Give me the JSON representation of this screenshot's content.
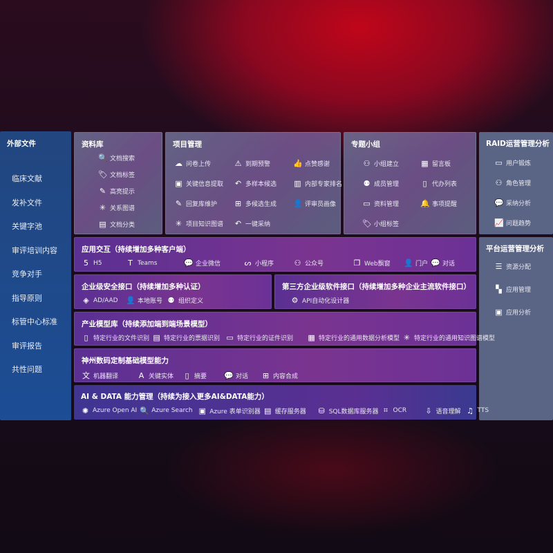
{
  "sidebar": {
    "title": "外部文件",
    "items": [
      "临床文献",
      "发补文件",
      "关键字池",
      "审评培训内容",
      "竞争对手",
      "指导原则",
      "标管中心标准",
      "审评报告",
      "共性问题"
    ]
  },
  "library": {
    "title": "资料库",
    "items": [
      {
        "icon": "document-search-icon",
        "label": "文档搜索"
      },
      {
        "icon": "tag-icon",
        "label": "文档标签"
      },
      {
        "icon": "pen-icon",
        "label": "高亮提示"
      },
      {
        "icon": "graph-icon",
        "label": "关系图谱"
      },
      {
        "icon": "classify-icon",
        "label": "文档分类"
      }
    ]
  },
  "project": {
    "title": "项目管理",
    "items": [
      {
        "icon": "cloud-upload-icon",
        "label": "问卷上传"
      },
      {
        "icon": "alarm-icon",
        "label": "到期预警"
      },
      {
        "icon": "thumbs-up-icon",
        "label": "点赞感谢"
      },
      {
        "icon": "extract-icon",
        "label": "关键信息提取"
      },
      {
        "icon": "reply-icon",
        "label": "多样本候选"
      },
      {
        "icon": "ranking-icon",
        "label": "内部专家排名"
      },
      {
        "icon": "edit-icon",
        "label": "回复库维护"
      },
      {
        "icon": "puzzle-icon",
        "label": "多候选生成"
      },
      {
        "icon": "user-icon",
        "label": "评审员画像"
      },
      {
        "icon": "knowledge-graph-icon",
        "label": "项目知识图谱"
      },
      {
        "icon": "reply-icon",
        "label": "一键采纳"
      }
    ]
  },
  "topic": {
    "title": "专题小组",
    "items": [
      {
        "icon": "group-icon",
        "label": "小组建立"
      },
      {
        "icon": "bbs-icon",
        "label": "留言板"
      },
      {
        "icon": "member-icon",
        "label": "成员管理"
      },
      {
        "icon": "clipboard-icon",
        "label": "代办列表"
      },
      {
        "icon": "folder-icon",
        "label": "资料管理"
      },
      {
        "icon": "bell-icon",
        "label": "事项提醒"
      },
      {
        "icon": "tag-icon",
        "label": "小组标签"
      }
    ]
  },
  "raid": {
    "title": "RAID运营管理分析",
    "items": [
      {
        "icon": "id-card-icon",
        "label": "用户锻炼"
      },
      {
        "icon": "users-icon",
        "label": "角色管理"
      },
      {
        "icon": "qa-icon",
        "label": "采纳分析"
      },
      {
        "icon": "trend-icon",
        "label": "问题趋势"
      }
    ]
  },
  "platform": {
    "title": "平台运营管理分析",
    "items": [
      {
        "icon": "list-check-icon",
        "label": "资源分配"
      },
      {
        "icon": "apps-icon",
        "label": "应用管理"
      },
      {
        "icon": "analysis-icon",
        "label": "应用分析"
      }
    ]
  },
  "interaction": {
    "title": "应用交互（持续增加多种客户端）",
    "items": [
      {
        "icon": "html5-icon",
        "label": "H5"
      },
      {
        "icon": "teams-icon",
        "label": "Teams"
      },
      {
        "icon": "wecom-icon",
        "label": "企业微信"
      },
      {
        "icon": "miniprogram-icon",
        "label": "小程序"
      },
      {
        "icon": "official-account-icon",
        "label": "公众号"
      },
      {
        "icon": "window-icon",
        "label": "Web飘窗"
      },
      {
        "icon": "portal-icon",
        "label": "门户"
      },
      {
        "icon": "chat-icon",
        "label": "对话"
      }
    ]
  },
  "security": {
    "title": "企业级安全接口（持续增加多种认证）",
    "items": [
      {
        "icon": "ad-icon",
        "label": "AD/AAD"
      },
      {
        "icon": "account-icon",
        "label": "本地账号"
      },
      {
        "icon": "org-icon",
        "label": "组织定义"
      }
    ]
  },
  "thirdparty": {
    "title": "第三方企业级软件接口（持续增加多种企业主流软件接口）",
    "items": [
      {
        "icon": "gear-icon",
        "label": "API自动化设计器"
      }
    ]
  },
  "industry": {
    "title": "产业模型库（持续添加端到端场景模型）",
    "items": [
      {
        "icon": "file-icon",
        "label": "特定行业的文件识别"
      },
      {
        "icon": "receipt-icon",
        "label": "特定行业的票据识别"
      },
      {
        "icon": "id-card-icon",
        "label": "特定行业的证件识别"
      },
      {
        "icon": "chart-icon",
        "label": "特定行业的通用数据分析模型"
      },
      {
        "icon": "graph-icon",
        "label": "特定行业的通用知识图谱模型"
      }
    ]
  },
  "base": {
    "title": "神州数码定制基础模型能力",
    "items": [
      {
        "icon": "translate-icon",
        "label": "机器翻译"
      },
      {
        "icon": "entity-icon",
        "label": "关键实体"
      },
      {
        "icon": "summary-icon",
        "label": "摘要"
      },
      {
        "icon": "chat-icon",
        "label": "对话"
      },
      {
        "icon": "compose-icon",
        "label": "内容合成"
      }
    ]
  },
  "ai": {
    "title": "AI & DATA 能力管理（持续为接入更多AI&DATA能力）",
    "items": [
      {
        "icon": "openai-icon",
        "label": "Azure Open AI"
      },
      {
        "icon": "search-icon",
        "label": "Azure Search"
      },
      {
        "icon": "form-icon",
        "label": "Azure 表单识别器"
      },
      {
        "icon": "cache-icon",
        "label": "缓存服务器"
      },
      {
        "icon": "sql-icon",
        "label": "SQL数据库服务器"
      },
      {
        "icon": "ocr-icon",
        "label": "OCR"
      },
      {
        "icon": "speech-icon",
        "label": "语音理解"
      },
      {
        "icon": "tts-icon",
        "label": "TTS"
      }
    ]
  }
}
